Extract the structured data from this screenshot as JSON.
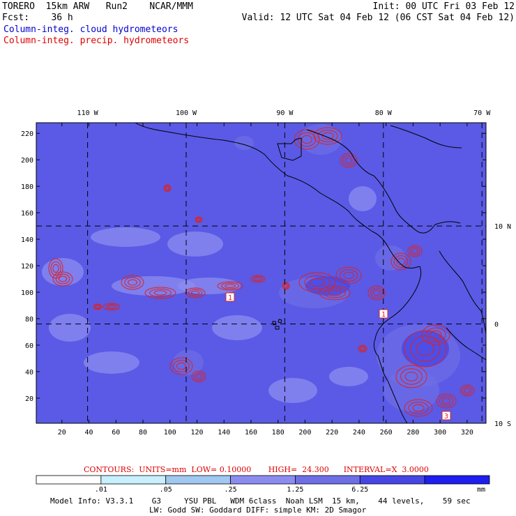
{
  "header": {
    "left_line1": "TORERO  15km ARW   Run2    NCAR/MMM",
    "left_line2": "Fcst:    36 h",
    "right_line1": "Init: 00 UTC Fri 03 Feb 12",
    "right_line2": "Valid: 12 UTC Sat 04 Feb 12 (06 CST Sat 04 Feb 12)",
    "legend_cloud": "Column-integ. cloud hydrometeors",
    "legend_precip": "Column-integ. precip. hydrometeors"
  },
  "colors": {
    "cloud_levels": [
      "#ffffff",
      "#c8f0ff",
      "#a0c8f0",
      "#8c8cf0",
      "#6e6ee6",
      "#4646e6",
      "#1e1ef0"
    ],
    "contour": "#dd2222",
    "coast": "#000000"
  },
  "chart_data": {
    "type": "heatmap",
    "title": "",
    "x_ticks": [
      20,
      40,
      60,
      80,
      100,
      120,
      140,
      160,
      180,
      200,
      220,
      240,
      260,
      280,
      300,
      320
    ],
    "y_ticks": [
      20,
      40,
      60,
      80,
      100,
      120,
      140,
      160,
      180,
      200,
      220
    ],
    "xlim": [
      1,
      334
    ],
    "ylim": [
      1,
      228
    ],
    "longitude_labels": [
      "110 W",
      "100 W",
      "90 W",
      "80 W",
      "70 W"
    ],
    "longitude_x": [
      39,
      112,
      185,
      258,
      331
    ],
    "latitude_labels": [
      "10 N",
      "0",
      "10 S"
    ],
    "latitude_y": [
      150,
      76,
      1
    ],
    "contour_labels": [
      "1",
      "1",
      "3"
    ],
    "colorbar": {
      "thresholds": [
        ".01",
        ".05",
        ".25",
        "1.25",
        "6.25"
      ],
      "unit": "mm"
    },
    "contours": {
      "text": "CONTOURS:  UNITS=mm  LOW= 0.10000       HIGH=  24.300      INTERVAL=X  3.0000"
    }
  },
  "footer": {
    "line1": "Model Info: V3.3.1    G3     YSU PBL   WDM 6class  Noah LSM  15 km,    44 levels,    59 sec",
    "line2": "LW: Godd SW: Goddard DIFF: simple KM: 2D Smagor"
  }
}
